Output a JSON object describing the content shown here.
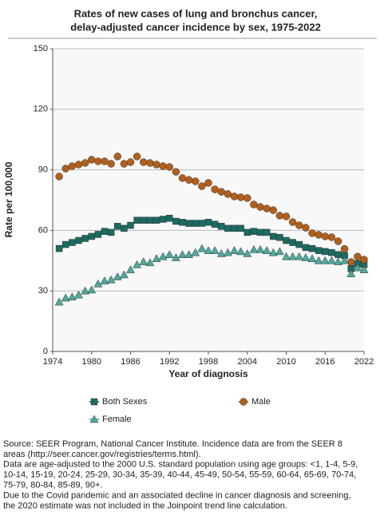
{
  "chart_data": {
    "type": "scatter",
    "title": [
      "Rates of new cases of lung and bronchus cancer,",
      "delay-adjusted cancer incidence by sex, 1975-2022"
    ],
    "x_label": "Year of diagnosis",
    "y_label": "Rate per 100,000",
    "x": [
      1975,
      1976,
      1977,
      1978,
      1979,
      1980,
      1981,
      1982,
      1983,
      1984,
      1985,
      1986,
      1987,
      1988,
      1989,
      1990,
      1991,
      1992,
      1993,
      1994,
      1995,
      1996,
      1997,
      1998,
      1999,
      2000,
      2001,
      2002,
      2003,
      2004,
      2005,
      2006,
      2007,
      2008,
      2009,
      2010,
      2011,
      2012,
      2013,
      2014,
      2015,
      2016,
      2017,
      2018,
      2019,
      2020,
      2021,
      2022
    ],
    "series": [
      {
        "name": "Both Sexes",
        "color": "#1b6b62",
        "marker": "square",
        "values": [
          51,
          53,
          54,
          55,
          56,
          57,
          58,
          59.5,
          59,
          62,
          61,
          62.5,
          65,
          65,
          65,
          65,
          65.5,
          66,
          64.5,
          64,
          63.5,
          63.5,
          63.5,
          64,
          63,
          62,
          61,
          61,
          61,
          59,
          59.5,
          59,
          59,
          57,
          56.5,
          55,
          54,
          53,
          51.5,
          51,
          50,
          49.5,
          49,
          48,
          47.5,
          41,
          43.5,
          43
        ]
      },
      {
        "name": "Male",
        "color": "#b0601c",
        "marker": "circle",
        "values": [
          86.7,
          90.6,
          91.8,
          92.6,
          93.4,
          95,
          94.2,
          94.2,
          93,
          96.6,
          93,
          93.8,
          96.6,
          93.8,
          93.4,
          92.6,
          91.8,
          91.4,
          89,
          85.9,
          85,
          84.3,
          81.9,
          83.5,
          80.3,
          79.1,
          78,
          76.8,
          76.4,
          76,
          72.8,
          71.6,
          70.8,
          70,
          67.3,
          66.9,
          64.1,
          62.5,
          61.3,
          58.6,
          57.8,
          57,
          56.6,
          54.6,
          50.8,
          44.3,
          47,
          45.5
        ]
      },
      {
        "name": "Female",
        "color": "#4fa89c",
        "marker": "triangle",
        "values": [
          24.5,
          26.5,
          27,
          28,
          30,
          30.5,
          33.5,
          35,
          35.5,
          37,
          38,
          40.5,
          43,
          44.5,
          44,
          46,
          47,
          48,
          46.5,
          48,
          48,
          49,
          51,
          50,
          50,
          48.5,
          49,
          50,
          49.5,
          48.5,
          50.5,
          50.5,
          50,
          49,
          49.5,
          47,
          47,
          47,
          46.5,
          46,
          45,
          45,
          45,
          44.5,
          45,
          38.5,
          41.5,
          40.5
        ]
      }
    ],
    "xlim": [
      1974,
      2022
    ],
    "xticks": [
      1974,
      1980,
      1986,
      1992,
      1998,
      2004,
      2010,
      2016,
      2022
    ],
    "ylim": [
      0,
      150
    ],
    "yticks": [
      0,
      30,
      60,
      90,
      120,
      150
    ],
    "grid": true,
    "notes": [
      "Source: SEER Program, National Cancer Institute. Incidence data are from the SEER 8",
      "areas (http://seer.cancer.gov/registries/terms.html).",
      "Data are age-adjusted to the 2000 U.S. standard population using age groups: <1, 1-4, 5-9,",
      "10-14, 15-19, 20-24, 25-29, 30-34, 35-39, 40-44, 45-49, 50-54, 55-59, 60-64, 65-69, 70-74,",
      "75-79, 80-84, 85-89, 90+.",
      "Due to the Covid pandemic and an associated decline in cancer diagnosis and screening,",
      "the 2020 estimate was not included in the Joinpoint trend line calculation."
    ]
  }
}
